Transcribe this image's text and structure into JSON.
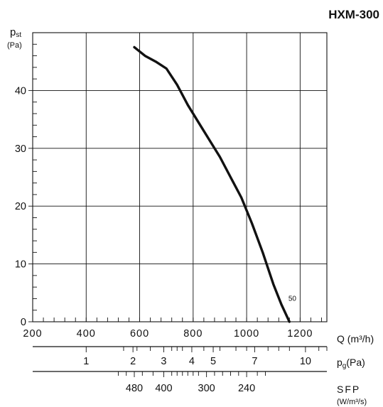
{
  "chart_data": {
    "type": "line",
    "title": "HXM-300",
    "ylabel_main": "p",
    "ylabel_sub": "st",
    "ylabel_unit": "(Pa)",
    "ylim": [
      0,
      50
    ],
    "y_ticks": [
      0,
      10,
      20,
      30,
      40
    ],
    "xlabel": "Q (m³/h)",
    "xlim": [
      200,
      1300
    ],
    "x_ticks": [
      200,
      400,
      600,
      800,
      1000,
      1200
    ],
    "grid": true,
    "series": [
      {
        "x": [
          580,
          620,
          660,
          700,
          740,
          780,
          820,
          860,
          900,
          940,
          980,
          1020,
          1060,
          1100,
          1130,
          1160
        ],
        "y": [
          47.5,
          46.0,
          45.0,
          43.8,
          41.0,
          37.5,
          34.5,
          31.5,
          28.5,
          25.0,
          21.5,
          17.0,
          12.0,
          6.5,
          3.0,
          0.0
        ]
      }
    ],
    "annotations": [
      {
        "text": "50",
        "x": 1155,
        "y": 4
      }
    ],
    "secondary_axes": [
      {
        "label_main": "p",
        "label_sub": "g",
        "label_unit": "(Pa)",
        "labeled_ticks": [
          {
            "label": "1",
            "q": 400
          },
          {
            "label": "2",
            "q": 575
          },
          {
            "label": "3",
            "q": 690
          },
          {
            "label": "4",
            "q": 795
          },
          {
            "label": "5",
            "q": 875
          },
          {
            "label": "7",
            "q": 1030
          },
          {
            "label": "10",
            "q": 1220
          }
        ],
        "minor_ticks_q": [
          540,
          590,
          640,
          720,
          740,
          760,
          840,
          900,
          960,
          1000,
          1080,
          1120,
          1160,
          1270,
          1300
        ]
      },
      {
        "label_main": "SFP",
        "label_unit": "(W/m³/s)",
        "labeled_ticks": [
          {
            "label": "480",
            "q": 580
          },
          {
            "label": "400",
            "q": 690
          },
          {
            "label": "300",
            "q": 850
          },
          {
            "label": "240",
            "q": 1000
          }
        ],
        "minor_ticks_q": [
          520,
          550,
          610,
          650,
          720,
          740,
          760,
          780,
          800,
          820,
          880,
          910,
          940,
          970,
          1040,
          1070
        ]
      }
    ]
  }
}
